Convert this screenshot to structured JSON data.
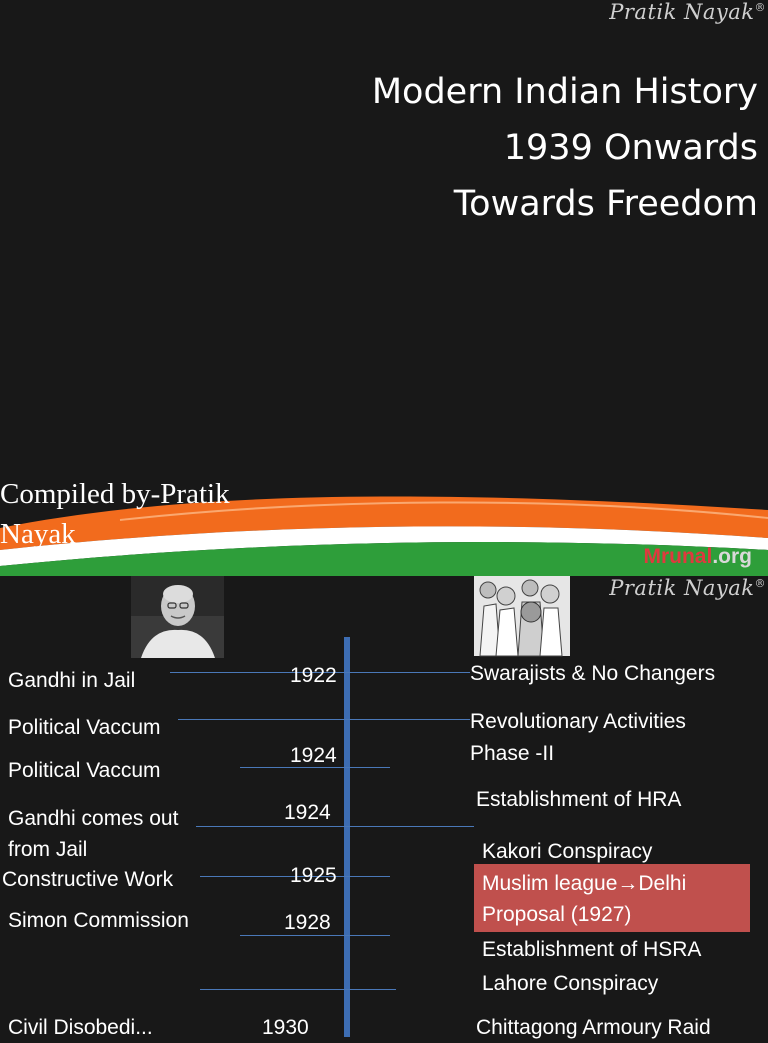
{
  "slide1": {
    "watermark": "Pratik Nayak",
    "watermark_mark": "®",
    "title_lines": [
      "Modern Indian History",
      "1939 Onwards",
      "Towards Freedom"
    ],
    "compiled_lines": [
      "Compiled by-Pratik",
      "Nayak"
    ],
    "logo_part1": "Mrunal",
    "logo_part2": ".org",
    "colors": {
      "saffron": "#f26b1d",
      "white": "#ffffff",
      "green": "#2e9e3a",
      "background": "#181818"
    }
  },
  "slide2": {
    "watermark": "Pratik Nayak",
    "watermark_mark": "®",
    "left_events": [
      "Gandhi in Jail",
      "Political Vaccum",
      "Political Vaccum",
      "Gandhi comes out",
      "from Jail",
      "Constructive Work",
      "Simon Commission",
      "Civil Disobedi..."
    ],
    "years": [
      "1922",
      "1924",
      "1924",
      "1925",
      "1928",
      "1930"
    ],
    "right_events": [
      "Swarajists  & No Changers",
      "Revolutionary Activities",
      "Phase -II",
      "Establishment of HRA",
      "Kakori Conspiracy",
      "Establishment of HSRA",
      "Lahore Conspiracy",
      "Chittagong Armoury Raid"
    ],
    "highlight_lines": [
      "Muslim league→Delhi",
      "Proposal (1927)"
    ],
    "colors": {
      "timeline": "#3d6db3",
      "highlight": "#c0504d"
    }
  }
}
